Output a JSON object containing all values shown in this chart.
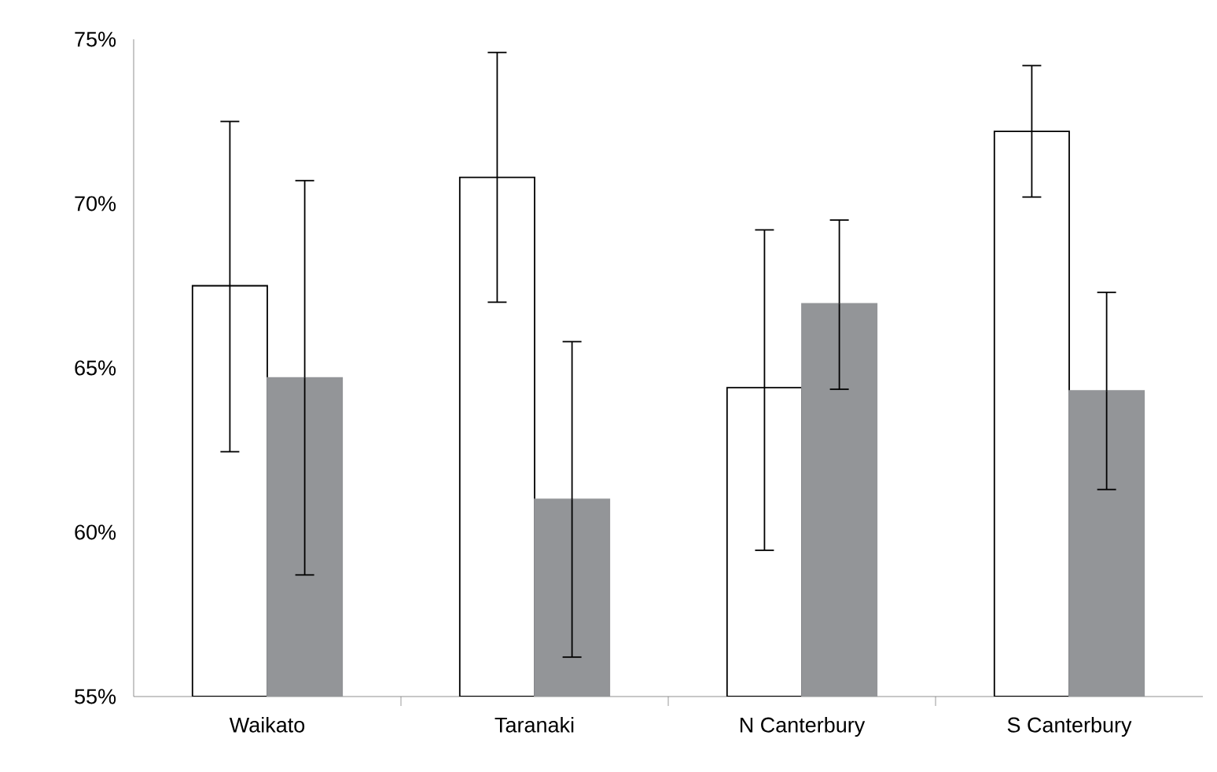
{
  "chart_data": {
    "type": "bar",
    "categories": [
      "Waikato",
      "Taranaki",
      "N Canterbury",
      "S Canterbury"
    ],
    "series": [
      {
        "color": "#ffffff",
        "values": [
          67.5,
          70.8,
          64.4,
          72.2
        ],
        "errors": [
          [
            62.45,
            72.5
          ],
          [
            67.0,
            74.6
          ],
          [
            59.45,
            69.2
          ],
          [
            70.2,
            74.2
          ]
        ]
      },
      {
        "color": "#939598",
        "values": [
          64.7,
          61.0,
          66.95,
          64.3
        ],
        "errors": [
          [
            58.7,
            70.7
          ],
          [
            56.2,
            65.8
          ],
          [
            64.35,
            69.5
          ],
          [
            61.3,
            67.3
          ]
        ]
      }
    ],
    "ylim": [
      55,
      75
    ],
    "yticks": [
      {
        "value": 55,
        "label": "55%"
      },
      {
        "value": 60,
        "label": "60%"
      },
      {
        "value": 65,
        "label": "65%"
      },
      {
        "value": 70,
        "label": "70%"
      },
      {
        "value": 75,
        "label": "75%"
      }
    ],
    "grid": false
  }
}
